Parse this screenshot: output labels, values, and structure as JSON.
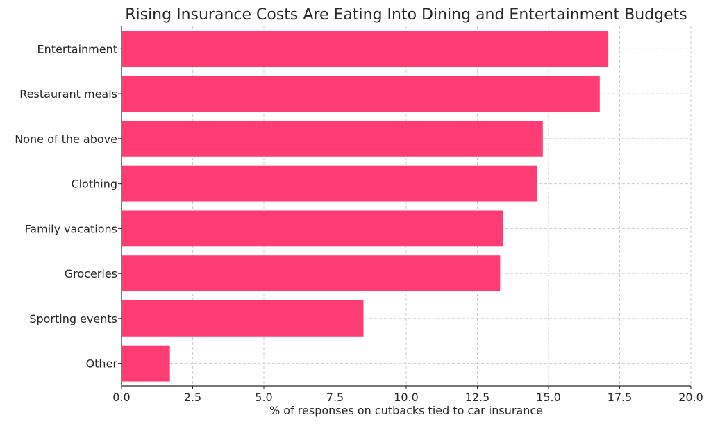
{
  "chart_data": {
    "type": "bar",
    "orientation": "horizontal",
    "title": "Rising Insurance Costs Are Eating Into Dining and Entertainment Budgets",
    "xlabel": "% of responses on cutbacks tied to car insurance",
    "ylabel": "",
    "xlim": [
      0,
      20
    ],
    "x_ticks": [
      "0.0",
      "2.5",
      "5.0",
      "7.5",
      "10.0",
      "12.5",
      "15.0",
      "17.5",
      "20.0"
    ],
    "categories": [
      "Entertainment",
      "Restaurant meals",
      "None of the above",
      "Clothing",
      "Family vacations",
      "Groceries",
      "Sporting events",
      "Other"
    ],
    "values": [
      17.1,
      16.8,
      14.8,
      14.6,
      13.4,
      13.3,
      8.5,
      1.7
    ],
    "bar_color": "#ff3c74",
    "grid": true
  }
}
